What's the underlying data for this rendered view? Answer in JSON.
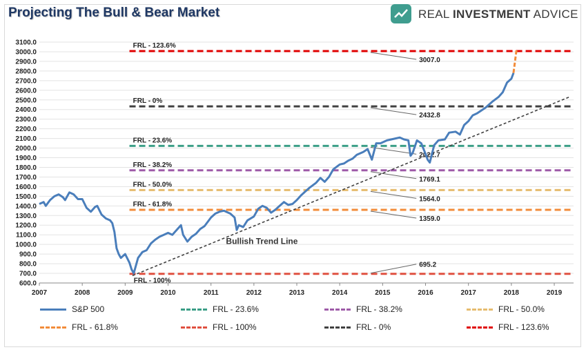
{
  "header": {
    "title": "Projecting The Bull & Bear Market",
    "brand_regular": "REAL ",
    "brand_bold": "INVESTMENT",
    "brand_end": " ADVICE",
    "brand_color": "#3f9d8f"
  },
  "chart_data": {
    "type": "line",
    "title": "Projecting The Bull & Bear Market",
    "xlabel": "",
    "ylabel": "",
    "xlim": [
      2007,
      2019.45
    ],
    "ylim": [
      600,
      3100
    ],
    "grid": true,
    "legend_position": "bottom",
    "x_ticks": [
      "2007",
      "2008",
      "2009",
      "2010",
      "2011",
      "2012",
      "2013",
      "2014",
      "2015",
      "2016",
      "2017",
      "2018",
      "2019"
    ],
    "y_ticks": [
      "600.0",
      "700.0",
      "800.0",
      "900.0",
      "1000.0",
      "1100.0",
      "1200.0",
      "1300.0",
      "1400.0",
      "1500.0",
      "1600.0",
      "1700.0",
      "1800.0",
      "1900.0",
      "2000.0",
      "2100.0",
      "2200.0",
      "2300.0",
      "2400.0",
      "2500.0",
      "2600.0",
      "2700.0",
      "2800.0",
      "2900.0",
      "3000.0",
      "3100.0"
    ],
    "sp500": {
      "name": "S&P 500",
      "color": "#4a7ebb",
      "x": [
        2007.0,
        2007.1,
        2007.15,
        2007.25,
        2007.35,
        2007.45,
        2007.55,
        2007.6,
        2007.7,
        2007.8,
        2007.9,
        2008.0,
        2008.1,
        2008.2,
        2008.3,
        2008.35,
        2008.45,
        2008.55,
        2008.65,
        2008.7,
        2008.75,
        2008.8,
        2008.85,
        2008.9,
        2008.95,
        2009.0,
        2009.1,
        2009.15,
        2009.2,
        2009.3,
        2009.4,
        2009.5,
        2009.6,
        2009.7,
        2009.8,
        2009.9,
        2010.0,
        2010.1,
        2010.2,
        2010.3,
        2010.35,
        2010.45,
        2010.55,
        2010.65,
        2010.75,
        2010.85,
        2011.0,
        2011.1,
        2011.2,
        2011.3,
        2011.45,
        2011.55,
        2011.6,
        2011.65,
        2011.75,
        2011.85,
        2012.0,
        2012.1,
        2012.2,
        2012.3,
        2012.4,
        2012.5,
        2012.6,
        2012.7,
        2012.8,
        2012.9,
        2013.0,
        2013.1,
        2013.2,
        2013.3,
        2013.45,
        2013.55,
        2013.65,
        2013.75,
        2013.85,
        2014.0,
        2014.1,
        2014.2,
        2014.3,
        2014.4,
        2014.55,
        2014.65,
        2014.75,
        2014.85,
        2014.95,
        2015.0,
        2015.1,
        2015.2,
        2015.3,
        2015.4,
        2015.5,
        2015.6,
        2015.65,
        2015.7,
        2015.8,
        2015.9,
        2016.0,
        2016.05,
        2016.1,
        2016.2,
        2016.3,
        2016.45,
        2016.55,
        2016.7,
        2016.8,
        2016.9,
        2017.0,
        2017.1,
        2017.2,
        2017.3,
        2017.4,
        2017.55,
        2017.7,
        2017.8,
        2017.9,
        2018.0,
        2018.05
      ],
      "y": [
        1420,
        1440,
        1400,
        1460,
        1500,
        1520,
        1490,
        1460,
        1540,
        1520,
        1470,
        1470,
        1380,
        1340,
        1390,
        1400,
        1310,
        1270,
        1250,
        1220,
        1130,
        960,
        900,
        860,
        880,
        900,
        810,
        740,
        700,
        860,
        920,
        940,
        1010,
        1050,
        1080,
        1100,
        1120,
        1100,
        1150,
        1200,
        1100,
        1030,
        1080,
        1110,
        1160,
        1190,
        1280,
        1320,
        1340,
        1350,
        1320,
        1280,
        1150,
        1200,
        1180,
        1250,
        1290,
        1370,
        1400,
        1380,
        1330,
        1360,
        1400,
        1440,
        1410,
        1420,
        1460,
        1510,
        1550,
        1590,
        1640,
        1690,
        1650,
        1700,
        1780,
        1830,
        1840,
        1870,
        1890,
        1930,
        1960,
        1990,
        1880,
        2050,
        2050,
        2060,
        2080,
        2090,
        2100,
        2110,
        2090,
        2080,
        1920,
        1950,
        2080,
        2050,
        1940,
        1880,
        1850,
        2030,
        2080,
        2090,
        2160,
        2170,
        2140,
        2240,
        2280,
        2340,
        2360,
        2390,
        2420,
        2480,
        2530,
        2580,
        2680,
        2720,
        2780
      ]
    },
    "projection": {
      "x": [
        2018.05,
        2018.12
      ],
      "y": [
        2780,
        3020
      ],
      "color": "#f28c3a"
    },
    "trend_line": {
      "label": "Bullish Trend Line",
      "x": [
        2009.17,
        2019.35
      ],
      "y": [
        676,
        2530
      ],
      "color": "#404040"
    },
    "levels": [
      {
        "name": "FRL - 123.6%",
        "value": 3007.0,
        "value_label": "3007.0",
        "color": "#e00000"
      },
      {
        "name": "FRL - 0%",
        "value": 2432.8,
        "value_label": "2432.8",
        "color": "#404040"
      },
      {
        "name": "FRL - 23.6%",
        "value": 2022.7,
        "value_label": "2022.7",
        "color": "#3a9e86"
      },
      {
        "name": "FRL - 38.2%",
        "value": 1769.1,
        "value_label": "1769.1",
        "color": "#9e5aa8"
      },
      {
        "name": "FRL - 50.0%",
        "value": 1564.0,
        "value_label": "1564.0",
        "color": "#e6bc6e"
      },
      {
        "name": "FRL - 61.8%",
        "value": 1359.0,
        "value_label": "1359.0",
        "color": "#f28c3a"
      },
      {
        "name": "FRL - 100%",
        "value": 695.2,
        "value_label": "695.2",
        "color": "#e05040"
      }
    ],
    "legend": [
      {
        "label": "S&P 500",
        "color": "#4a7ebb",
        "dashed": false
      },
      {
        "label": "FRL - 23.6%",
        "color": "#3a9e86",
        "dashed": true
      },
      {
        "label": "FRL - 38.2%",
        "color": "#9e5aa8",
        "dashed": true
      },
      {
        "label": "FRL - 50.0%",
        "color": "#e6bc6e",
        "dashed": true
      },
      {
        "label": "FRL - 61.8%",
        "color": "#f28c3a",
        "dashed": true
      },
      {
        "label": "FRL - 100%",
        "color": "#e05040",
        "dashed": true
      },
      {
        "label": "FRL - 0%",
        "color": "#404040",
        "dashed": true
      },
      {
        "label": "FRL - 123.6%",
        "color": "#e00000",
        "dashed": true
      }
    ]
  }
}
